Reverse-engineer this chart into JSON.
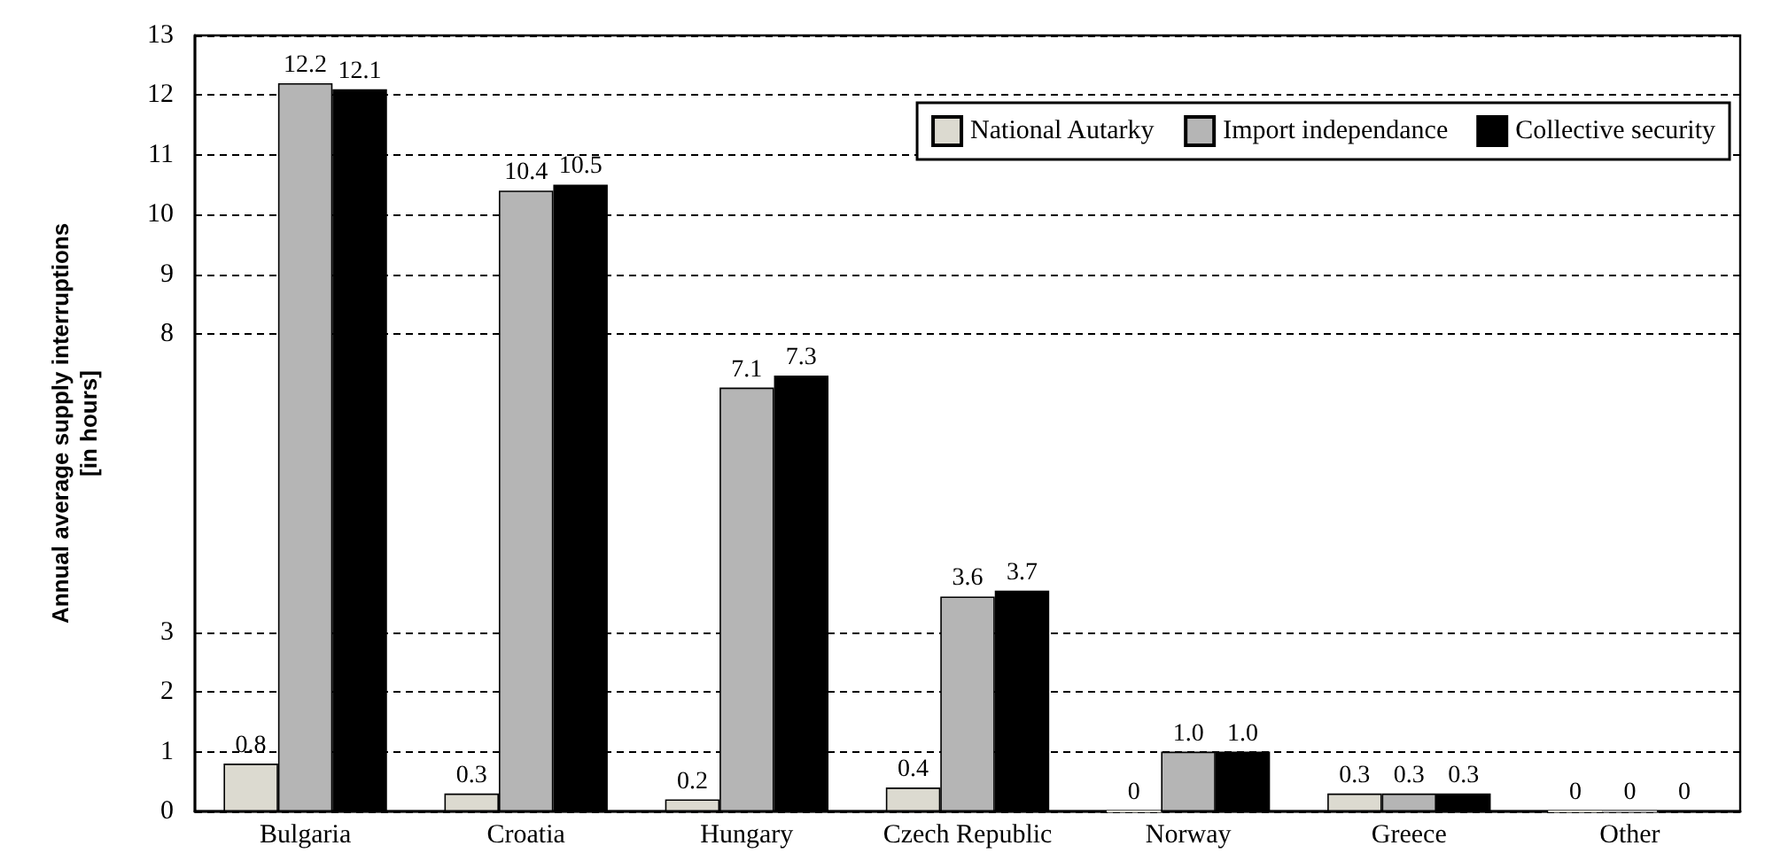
{
  "chart_data": {
    "type": "bar",
    "ylabel": "Annual average supply interruptions\n[in hours]",
    "categories": [
      "Bulgaria",
      "Croatia",
      "Hungary",
      "Czech Republic",
      "Norway",
      "Greece",
      "Other"
    ],
    "series": [
      {
        "name": "National Autarky",
        "color": "#dcdad0",
        "values": [
          0.8,
          0.3,
          0.2,
          0.4,
          0,
          0.3,
          0
        ],
        "value_labels": [
          "0.8",
          "0.3",
          "0.2",
          "0.4",
          "0",
          "0.3",
          "0"
        ]
      },
      {
        "name": "Import independance",
        "color": "#b5b5b5",
        "values": [
          12.2,
          10.4,
          7.1,
          3.6,
          1.0,
          0.3,
          0
        ],
        "value_labels": [
          "12.2",
          "10.4",
          "7.1",
          "3.6",
          "1.0",
          "0.3",
          "0"
        ]
      },
      {
        "name": "Collective security",
        "color": "#000000",
        "values": [
          12.1,
          10.5,
          7.3,
          3.7,
          1.0,
          0.3,
          0
        ],
        "value_labels": [
          "12.1",
          "10.5",
          "7.3",
          "3.7",
          "1.0",
          "0.3",
          "0"
        ]
      }
    ],
    "ylim": [
      0,
      13
    ],
    "yticks": [
      0,
      1,
      2,
      3,
      8,
      9,
      10,
      11,
      12,
      13
    ],
    "grid": "y",
    "legend": "top right"
  }
}
